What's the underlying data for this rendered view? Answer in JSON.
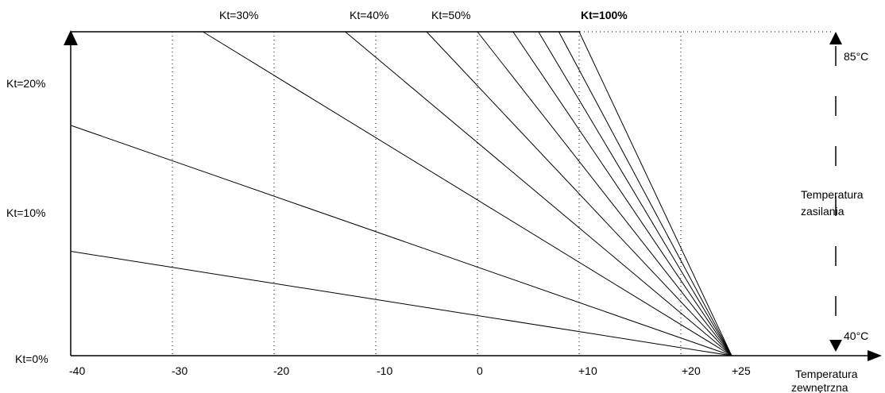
{
  "chart_data": {
    "type": "line",
    "title": "",
    "xlabel": [
      "Temperatura",
      "zewnętrzna"
    ],
    "ylabel": [
      "Temperatura",
      "zasilania"
    ],
    "x_ticks": [
      "-40",
      "-30",
      "-20",
      "-10",
      "0",
      "+10",
      "+20",
      "+25"
    ],
    "x_tick_values": [
      -40,
      -30,
      -20,
      -10,
      0,
      10,
      20,
      25
    ],
    "gridlines_x": [
      -30,
      -20,
      -10,
      0,
      10,
      20
    ],
    "xlim": [
      -40,
      25
    ],
    "ylim": [
      40,
      85
    ],
    "y_ticks": [
      "85°C",
      "40°C"
    ],
    "y_tick_values": [
      85,
      40
    ],
    "kt_left_labels": [
      "Kt=20%",
      "Kt=10%",
      "Kt=0%"
    ],
    "kt_top_labels": [
      "Kt=30%",
      "Kt=40%",
      "Kt=50%",
      "Kt=100%"
    ],
    "pivot": {
      "x": 25,
      "y": 40
    },
    "series": [
      {
        "name": "Kt=10%",
        "x": [
          -40,
          25
        ],
        "y": [
          54.5,
          40
        ]
      },
      {
        "name": "Kt=20%",
        "x": [
          -40,
          25
        ],
        "y": [
          72,
          40
        ]
      },
      {
        "name": "Kt=30%",
        "x": [
          -27,
          25
        ],
        "y": [
          85,
          40
        ]
      },
      {
        "name": "Kt=40%",
        "x": [
          -13,
          25
        ],
        "y": [
          85,
          40
        ]
      },
      {
        "name": "Kt=50%",
        "x": [
          -5,
          25
        ],
        "y": [
          85,
          40
        ]
      },
      {
        "x": [
          0,
          25
        ],
        "y": [
          85,
          40
        ]
      },
      {
        "x": [
          3.5,
          25
        ],
        "y": [
          85,
          40
        ]
      },
      {
        "x": [
          6,
          25
        ],
        "y": [
          85,
          40
        ]
      },
      {
        "x": [
          8,
          25
        ],
        "y": [
          85,
          40
        ]
      },
      {
        "name": "Kt=100%",
        "x": [
          10,
          25
        ],
        "y": [
          85,
          40
        ]
      }
    ],
    "grid": "x-only dotted",
    "legend": "none"
  }
}
